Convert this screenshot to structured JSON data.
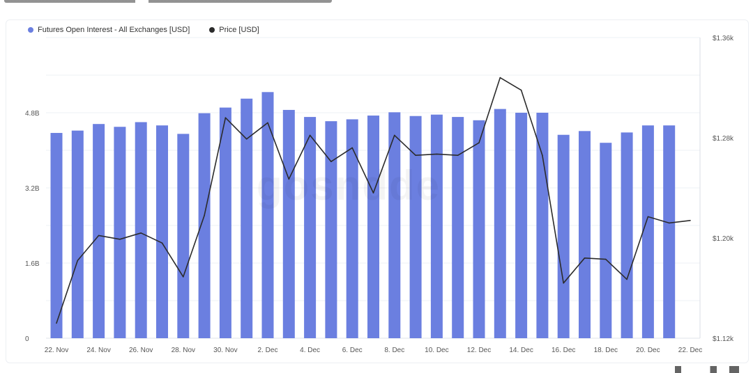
{
  "chart_data": {
    "type": "bar",
    "title": "",
    "legend": {
      "placement": "top-left",
      "items": [
        {
          "name": "Futures Open Interest - All Exchanges [USD]",
          "color": "#6b7fe0"
        },
        {
          "name": "Price [USD]",
          "color": "#2b2b2b"
        }
      ]
    },
    "x_ticks": [
      "22. Nov",
      "24. Nov",
      "26. Nov",
      "28. Nov",
      "30. Nov",
      "2. Dec",
      "4. Dec",
      "6. Dec",
      "8. Dec",
      "10. Dec",
      "12. Dec",
      "14. Dec",
      "16. Dec",
      "18. Dec",
      "20. Dec",
      "22. Dec"
    ],
    "y_left": {
      "ticks": [
        "0",
        "1.6B",
        "3.2B",
        "4.8B"
      ],
      "range": [
        0,
        6.4
      ]
    },
    "y_right": {
      "ticks": [
        "$1.12k",
        "$1.20k",
        "$1.28k",
        "$1.36k"
      ],
      "range": [
        1.12,
        1.36
      ]
    },
    "series": [
      {
        "name": "Futures Open Interest - All Exchanges [USD]",
        "type": "bar",
        "axis": "left",
        "color": "#6b7fe0",
        "values": [
          4.37,
          4.42,
          4.56,
          4.5,
          4.6,
          4.53,
          4.35,
          4.79,
          4.91,
          5.1,
          5.24,
          4.86,
          4.71,
          4.62,
          4.66,
          4.74,
          4.81,
          4.73,
          4.76,
          4.71,
          4.64,
          4.88,
          4.8,
          4.8,
          4.33,
          4.41,
          4.16,
          4.38,
          4.53,
          4.53
        ]
      },
      {
        "name": "Price [USD]",
        "type": "line",
        "axis": "right",
        "color": "#2b2b2b",
        "values": [
          1.132,
          1.182,
          1.202,
          1.199,
          1.204,
          1.196,
          1.169,
          1.218,
          1.296,
          1.279,
          1.292,
          1.247,
          1.282,
          1.261,
          1.272,
          1.236,
          1.282,
          1.266,
          1.267,
          1.266,
          1.276,
          1.328,
          1.318,
          1.266,
          1.164,
          1.184,
          1.183,
          1.167,
          1.217,
          1.212,
          1.214
        ]
      }
    ],
    "watermark": "gosndde"
  }
}
